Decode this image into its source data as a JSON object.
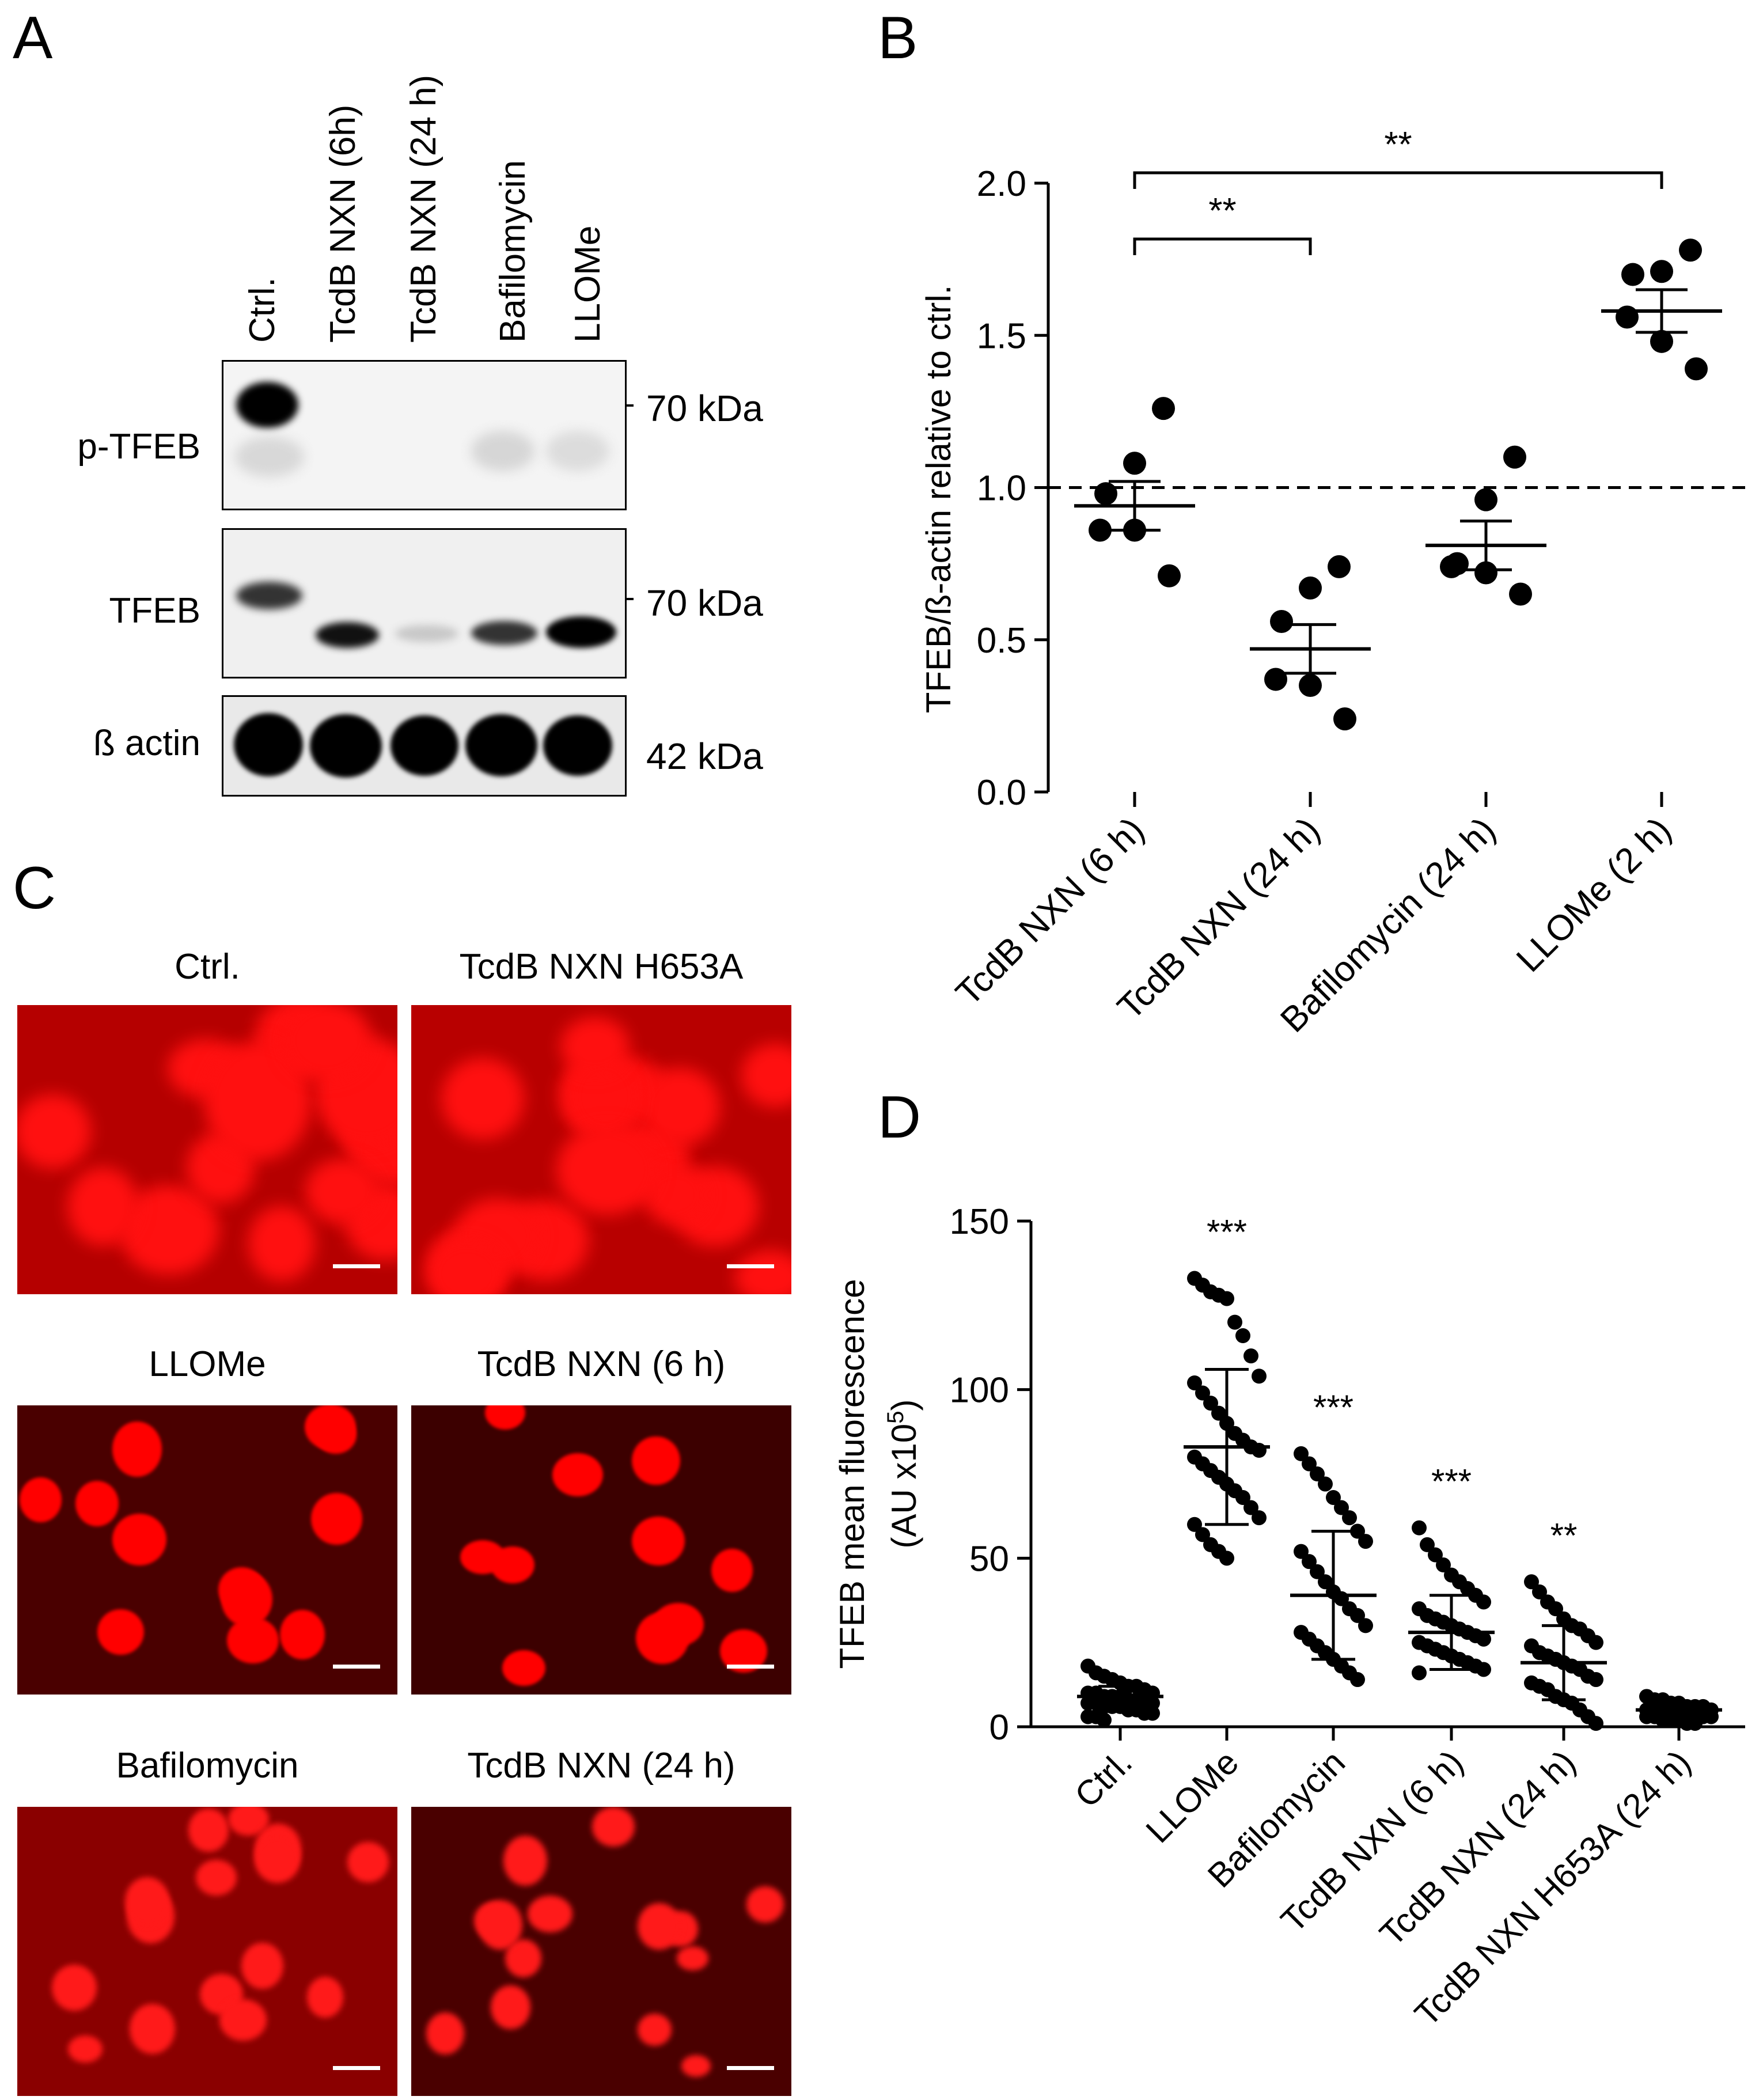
{
  "panelA": {
    "label": "A",
    "lanes": [
      "Ctrl.",
      "TcdB NXN (6h)",
      "TcdB NXN (24 h)",
      "Bafilomycin",
      "LLOMe"
    ],
    "rows": [
      {
        "name": "p-TFEB",
        "mw": "70 kDa"
      },
      {
        "name": "TFEB",
        "mw": "70 kDa"
      },
      {
        "name": "ß actin",
        "mw": "42 kDa"
      }
    ]
  },
  "panelB": {
    "label": "B",
    "chart_data": {
      "type": "scatter",
      "ylabel": "TFEB/ß-actin relative to ctrl.",
      "ylim": [
        0.0,
        2.0
      ],
      "yticks": [
        "0.0",
        "0.5",
        "1.0",
        "1.5",
        "2.0"
      ],
      "reference_line": 1.0,
      "categories": [
        "TcdB NXN (6 h)",
        "TcdB NXN (24 h)",
        "Bafilomycin (24 h)",
        "LLOMe (2 h)"
      ],
      "points": [
        [
          1.26,
          1.08,
          0.98,
          0.86,
          0.86,
          0.71
        ],
        [
          0.74,
          0.67,
          0.56,
          0.37,
          0.35,
          0.24
        ],
        [
          1.1,
          0.96,
          0.75,
          0.74,
          0.72,
          0.65
        ],
        [
          1.78,
          1.71,
          1.7,
          1.56,
          1.48,
          1.39
        ]
      ],
      "mean": [
        0.94,
        0.47,
        0.81,
        1.58
      ],
      "sem": [
        0.08,
        0.08,
        0.08,
        0.07
      ],
      "significance": [
        {
          "from": 0,
          "to": 1,
          "text": "**"
        },
        {
          "from": 0,
          "to": 3,
          "text": "**"
        }
      ]
    }
  },
  "panelC": {
    "label": "C",
    "images": [
      {
        "title": "Ctrl."
      },
      {
        "title": "TcdB NXN H653A"
      },
      {
        "title": "LLOMe"
      },
      {
        "title": "TcdB NXN (6 h)"
      },
      {
        "title": "Bafilomycin"
      },
      {
        "title": "TcdB NXN (24 h)"
      }
    ]
  },
  "panelD": {
    "label": "D",
    "chart_data": {
      "type": "scatter",
      "ylabel": "TFEB mean fluorescence",
      "ylabel2": "(AU x10",
      "ylabel2_sup": "5",
      "ylabel2_end": ")",
      "ylim": [
        0,
        150
      ],
      "yticks": [
        "0",
        "50",
        "100",
        "150"
      ],
      "categories": [
        "Ctrl.",
        "LLOMe",
        "Bafilomycin",
        "TcdB NXN (6 h)",
        "TcdB NXN (24 h)",
        "TcdB NXN H653A (24 h)"
      ],
      "points": [
        [
          18,
          16,
          15,
          14,
          13,
          12,
          12,
          11,
          10,
          10,
          10,
          9,
          9,
          9,
          8,
          8,
          8,
          7,
          7,
          7,
          6,
          6,
          6,
          5,
          5,
          4,
          4,
          3,
          3,
          2
        ],
        [
          133,
          131,
          129,
          128,
          127,
          120,
          116,
          110,
          104,
          102,
          99,
          96,
          93,
          90,
          87,
          85,
          83,
          82,
          80,
          78,
          76,
          74,
          72,
          70,
          68,
          65,
          62,
          60,
          57,
          54,
          52,
          50
        ],
        [
          81,
          78,
          75,
          72,
          68,
          65,
          62,
          58,
          55,
          52,
          49,
          46,
          43,
          40,
          38,
          35,
          33,
          30,
          28,
          26,
          24,
          22,
          20,
          18,
          16,
          14
        ],
        [
          59,
          54,
          51,
          48,
          45,
          43,
          41,
          39,
          37,
          35,
          33,
          32,
          31,
          30,
          29,
          28,
          27,
          26,
          25,
          24,
          23,
          22,
          21,
          20,
          19,
          18,
          17,
          16
        ],
        [
          43,
          40,
          37,
          35,
          32,
          30,
          29,
          27,
          25,
          24,
          22,
          21,
          20,
          19,
          18,
          17,
          15,
          14,
          13,
          12,
          11,
          9,
          8,
          7,
          5,
          3,
          1
        ],
        [
          9,
          8,
          8,
          7,
          7,
          6,
          6,
          6,
          5,
          5,
          5,
          5,
          4,
          4,
          4,
          4,
          3,
          3,
          3,
          3,
          2,
          2,
          2,
          1,
          1
        ]
      ],
      "mean": [
        9,
        83,
        39,
        28,
        19,
        5
      ],
      "sd": [
        3,
        23,
        19,
        11,
        11,
        2
      ],
      "significance": [
        "",
        "***",
        "***",
        "***",
        "**",
        ""
      ]
    }
  }
}
